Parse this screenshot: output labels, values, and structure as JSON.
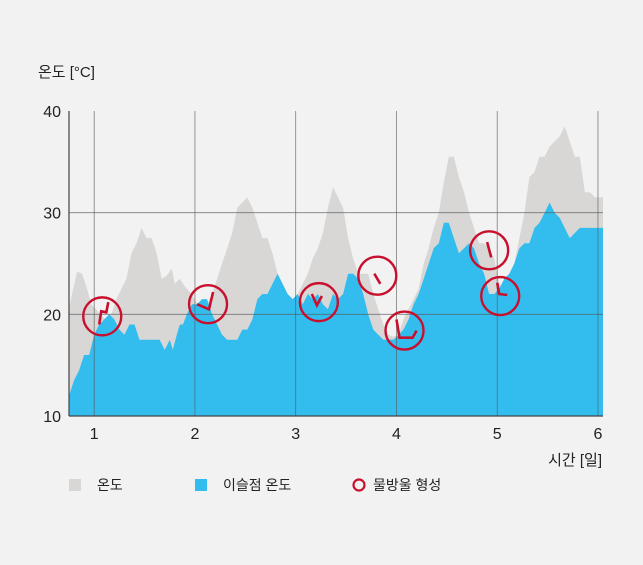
{
  "chart_data": {
    "type": "area",
    "ylabel": "온도 [°C]",
    "xlabel": "시간 [일]",
    "xlim": [
      0.75,
      6.05
    ],
    "ylim": [
      10,
      40
    ],
    "xticks": [
      "1",
      "2",
      "3",
      "4",
      "5",
      "6"
    ],
    "yticks": [
      "10",
      "20",
      "30",
      "40"
    ],
    "grid": true,
    "legend_placement": "bottom",
    "colors": {
      "temperature": "#d8d7d6",
      "dew_point": "#33bdee",
      "condensation": "#c8102e",
      "grid": "#555555",
      "axis": "#444444"
    },
    "series": [
      {
        "name": "온도",
        "key": "temperature",
        "x": [
          0.75,
          0.78,
          0.83,
          0.88,
          0.93,
          0.97,
          1.02,
          1.07,
          1.12,
          1.17,
          1.22,
          1.27,
          1.32,
          1.37,
          1.42,
          1.47,
          1.52,
          1.57,
          1.62,
          1.67,
          1.72,
          1.77,
          1.8,
          1.85,
          1.88,
          1.92,
          1.97,
          2.02,
          2.07,
          2.12,
          2.17,
          2.22,
          2.27,
          2.32,
          2.37,
          2.42,
          2.47,
          2.52,
          2.57,
          2.62,
          2.67,
          2.72,
          2.77,
          2.82,
          2.87,
          2.92,
          2.97,
          3.02,
          3.07,
          3.12,
          3.17,
          3.22,
          3.27,
          3.32,
          3.37,
          3.42,
          3.47,
          3.52,
          3.57,
          3.62,
          3.67,
          3.72,
          3.77,
          3.82,
          3.87,
          3.92,
          3.97,
          4.02,
          4.07,
          4.12,
          4.17,
          4.22,
          4.27,
          4.32,
          4.37,
          4.42,
          4.47,
          4.52,
          4.57,
          4.62,
          4.67,
          4.72,
          4.77,
          4.82,
          4.87,
          4.92,
          4.97,
          5.02,
          5.07,
          5.12,
          5.17,
          5.22,
          5.27,
          5.32,
          5.37,
          5.42,
          5.47,
          5.52,
          5.57,
          5.62,
          5.67,
          5.72,
          5.77,
          5.82,
          5.87,
          5.92,
          5.97,
          6.05
        ],
        "values": [
          20.5,
          22,
          24.2,
          24,
          22.5,
          21,
          20.5,
          19.8,
          19.5,
          20,
          21.5,
          22.5,
          23.5,
          26,
          27,
          28.5,
          27.5,
          27.5,
          26,
          23.5,
          23.8,
          24.5,
          23,
          23.5,
          23,
          22.5,
          22,
          21,
          20.8,
          21,
          22,
          23.5,
          25,
          26.5,
          28,
          30.5,
          31,
          31.5,
          30.5,
          29,
          27.5,
          27.5,
          26,
          24,
          22.5,
          22,
          21.5,
          22,
          23,
          24,
          25.5,
          26.5,
          28,
          30.5,
          32.5,
          31.5,
          30.5,
          27.5,
          25.5,
          24,
          24,
          24,
          22,
          20.5,
          19,
          18,
          17.8,
          18,
          19.5,
          20.5,
          21.5,
          22.5,
          25,
          26.5,
          28.5,
          30,
          33,
          35.5,
          35.5,
          33.5,
          32,
          30,
          28.5,
          27,
          27,
          26.5,
          25.5,
          23,
          22.5,
          23,
          25,
          27.5,
          30,
          33.5,
          34,
          35.5,
          35.5,
          36.5,
          37,
          37.5,
          38.5,
          37,
          35.5,
          35.5,
          32,
          32,
          31.5,
          31.5
        ]
      },
      {
        "name": "이슬점 온도",
        "key": "dew_point",
        "x": [
          0.75,
          0.8,
          0.85,
          0.9,
          0.95,
          1.0,
          1.05,
          1.1,
          1.15,
          1.2,
          1.25,
          1.3,
          1.35,
          1.4,
          1.45,
          1.5,
          1.55,
          1.6,
          1.65,
          1.7,
          1.75,
          1.78,
          1.82,
          1.85,
          1.88,
          1.92,
          1.97,
          2.02,
          2.07,
          2.12,
          2.17,
          2.22,
          2.27,
          2.32,
          2.37,
          2.42,
          2.47,
          2.52,
          2.57,
          2.62,
          2.67,
          2.72,
          2.77,
          2.82,
          2.87,
          2.92,
          2.97,
          3.02,
          3.07,
          3.12,
          3.17,
          3.22,
          3.27,
          3.32,
          3.37,
          3.42,
          3.47,
          3.52,
          3.57,
          3.62,
          3.67,
          3.72,
          3.77,
          3.82,
          3.87,
          3.92,
          3.97,
          4.02,
          4.07,
          4.12,
          4.17,
          4.22,
          4.27,
          4.32,
          4.37,
          4.42,
          4.47,
          4.52,
          4.57,
          4.62,
          4.67,
          4.72,
          4.77,
          4.82,
          4.87,
          4.92,
          4.97,
          5.02,
          5.07,
          5.12,
          5.17,
          5.22,
          5.27,
          5.32,
          5.37,
          5.42,
          5.47,
          5.52,
          5.57,
          5.62,
          5.67,
          5.72,
          5.77,
          5.82,
          5.87,
          5.92,
          5.97,
          6.05
        ],
        "values": [
          12,
          13.5,
          14.5,
          16,
          16,
          18,
          19,
          19.5,
          20,
          19.5,
          18.5,
          18,
          19,
          19,
          17.5,
          17.5,
          17.5,
          17.5,
          17.5,
          16.5,
          17.5,
          16.5,
          18,
          19,
          19,
          20,
          21,
          21,
          21.5,
          21.5,
          20,
          19,
          18,
          17.5,
          17.5,
          17.5,
          18.5,
          18.5,
          19.5,
          21.5,
          22,
          22,
          23,
          24,
          23,
          22,
          21.5,
          22,
          21,
          22,
          21.5,
          22,
          21,
          20.5,
          22,
          21.5,
          22,
          24,
          24,
          23.5,
          22,
          20,
          18.5,
          18,
          17.5,
          17.5,
          17.5,
          18,
          18.5,
          19.5,
          21,
          22,
          23.5,
          25,
          26.5,
          27,
          29,
          29,
          27.5,
          26,
          26.5,
          27,
          26.5,
          25,
          24,
          22,
          22,
          22.5,
          23.5,
          24,
          25,
          26.5,
          27,
          27,
          28.5,
          29,
          30,
          31,
          30,
          29.5,
          28.5,
          27.5,
          28,
          28.5,
          28.5,
          28.5,
          28.5,
          28.5
        ]
      }
    ],
    "condensation_markers": [
      {
        "x": 1.08,
        "y": 19.8,
        "segment": [
          [
            1.05,
            19.0
          ],
          [
            1.07,
            20.3
          ],
          [
            1.12,
            20.2
          ],
          [
            1.14,
            21.2
          ]
        ]
      },
      {
        "x": 2.13,
        "y": 21.0,
        "segment": [
          [
            2.02,
            21.0
          ],
          [
            2.14,
            20.5
          ],
          [
            2.18,
            22.2
          ]
        ]
      },
      {
        "x": 3.23,
        "y": 21.2,
        "segment": [
          [
            3.16,
            22.0
          ],
          [
            3.21,
            20.9
          ],
          [
            3.26,
            21.8
          ]
        ]
      },
      {
        "x": 3.81,
        "y": 23.8,
        "segment": [
          [
            3.78,
            24.0
          ],
          [
            3.84,
            23.0
          ]
        ]
      },
      {
        "x": 4.08,
        "y": 18.4,
        "segment": [
          [
            4.0,
            19.5
          ],
          [
            4.03,
            17.7
          ],
          [
            4.16,
            17.7
          ],
          [
            4.2,
            18.4
          ]
        ]
      },
      {
        "x": 4.92,
        "y": 26.3,
        "segment": [
          [
            4.9,
            27.1
          ],
          [
            4.94,
            25.6
          ]
        ]
      },
      {
        "x": 5.03,
        "y": 21.8,
        "segment": [
          [
            5.0,
            23.1
          ],
          [
            5.02,
            22.0
          ],
          [
            5.1,
            21.9
          ]
        ]
      }
    ]
  },
  "legend": [
    {
      "label": "온도",
      "key": "temperature",
      "shape": "square"
    },
    {
      "label": "이슬점 온도",
      "key": "dew_point",
      "shape": "square"
    },
    {
      "label": "물방울 형성",
      "key": "condensation",
      "shape": "ring"
    }
  ]
}
